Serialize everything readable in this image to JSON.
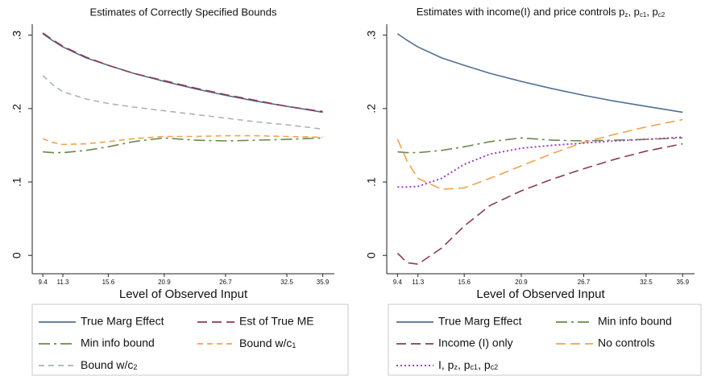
{
  "chart_data": [
    {
      "type": "line",
      "title": "Estimates of Correctly Specified Bounds",
      "xlabel": "Level of Observed Input",
      "x": [
        9.4,
        10.3,
        11.3,
        13.5,
        15.6,
        18,
        20.9,
        23.8,
        26.7,
        29.6,
        32.5,
        35.9
      ],
      "xlim": [
        8.4,
        37
      ],
      "xticks": [
        9.4,
        11.3,
        15.6,
        20.9,
        26.7,
        32.5,
        35.9
      ],
      "ylim": [
        -0.025,
        0.315
      ],
      "yticks": [
        0,
        {
          "value": 0.1,
          "label": ".1"
        },
        {
          "value": 0.2,
          "label": ".2"
        },
        {
          "value": 0.3,
          "label": ".3"
        }
      ],
      "series": [
        {
          "name": "True Marg Effect",
          "color": "#4f6f94",
          "style": "solid",
          "values": [
            0.302,
            0.293,
            0.284,
            0.269,
            0.259,
            0.248,
            0.237,
            0.227,
            0.218,
            0.21,
            0.203,
            0.195
          ]
        },
        {
          "name": "Est of True ME",
          "color": "#8e3b4c",
          "style": "longdash",
          "values": [
            0.303,
            0.294,
            0.285,
            0.27,
            0.259,
            0.248,
            0.238,
            0.228,
            0.219,
            0.211,
            0.203,
            0.196
          ]
        },
        {
          "name": "Min info bound",
          "color": "#6a8a4a",
          "style": "dashdot",
          "values": [
            0.141,
            0.14,
            0.14,
            0.143,
            0.148,
            0.155,
            0.16,
            0.157,
            0.156,
            0.157,
            0.158,
            0.16
          ]
        },
        {
          "name": [
            "Bound w/c",
            "1"
          ],
          "color": "#f2a34a",
          "style": "dash",
          "values": [
            0.159,
            0.154,
            0.151,
            0.152,
            0.155,
            0.159,
            0.162,
            0.162,
            0.163,
            0.163,
            0.162,
            0.161
          ]
        },
        {
          "name": [
            "Bound w/c",
            "2"
          ],
          "color": "#a5b8b4",
          "style": "dash",
          "values": [
            0.245,
            0.233,
            0.223,
            0.213,
            0.207,
            0.202,
            0.197,
            0.192,
            0.187,
            0.182,
            0.178,
            0.172
          ]
        }
      ]
    },
    {
      "type": "line",
      "title": [
        "Estimates with income(I) and price controls p",
        "z",
        ", p",
        "c1",
        ", p",
        "c2"
      ],
      "xlabel": "Level of Observed Input",
      "x": [
        9.4,
        10.3,
        11.3,
        13.5,
        15.6,
        18,
        20.9,
        23.8,
        26.7,
        29.6,
        32.5,
        35.9
      ],
      "xlim": [
        8.4,
        37
      ],
      "xticks": [
        9.4,
        11.3,
        15.6,
        20.9,
        26.7,
        32.5,
        35.9
      ],
      "ylim": [
        -0.025,
        0.315
      ],
      "yticks": [
        0,
        {
          "value": 0.1,
          "label": ".1"
        },
        {
          "value": 0.2,
          "label": ".2"
        },
        {
          "value": 0.3,
          "label": ".3"
        }
      ],
      "series": [
        {
          "name": "True Marg Effect",
          "color": "#4f6f94",
          "style": "solid",
          "values": [
            0.302,
            0.293,
            0.284,
            0.269,
            0.259,
            0.248,
            0.237,
            0.227,
            0.218,
            0.21,
            0.203,
            0.195
          ]
        },
        {
          "name": "Min info bound",
          "color": "#6a8a4a",
          "style": "dashdot",
          "values": [
            0.141,
            0.14,
            0.14,
            0.143,
            0.148,
            0.155,
            0.16,
            0.157,
            0.156,
            0.157,
            0.158,
            0.16
          ]
        },
        {
          "name": "Income (I) only",
          "color": "#8e3b4c",
          "style": "longdash",
          "values": [
            0.003,
            -0.01,
            -0.012,
            0.01,
            0.04,
            0.068,
            0.088,
            0.104,
            0.118,
            0.131,
            0.142,
            0.152
          ]
        },
        {
          "name": "No controls",
          "color": "#f2a34a",
          "style": "longdash",
          "values": [
            0.158,
            0.128,
            0.105,
            0.09,
            0.092,
            0.105,
            0.122,
            0.139,
            0.154,
            0.165,
            0.175,
            0.185
          ]
        },
        {
          "name": [
            "I, p",
            "z",
            ", p",
            "c1",
            ", p",
            "c2"
          ],
          "color": "#a23bc4",
          "style": "dot",
          "values": [
            0.093,
            0.093,
            0.094,
            0.105,
            0.124,
            0.138,
            0.146,
            0.15,
            0.153,
            0.156,
            0.158,
            0.161
          ]
        }
      ]
    }
  ]
}
